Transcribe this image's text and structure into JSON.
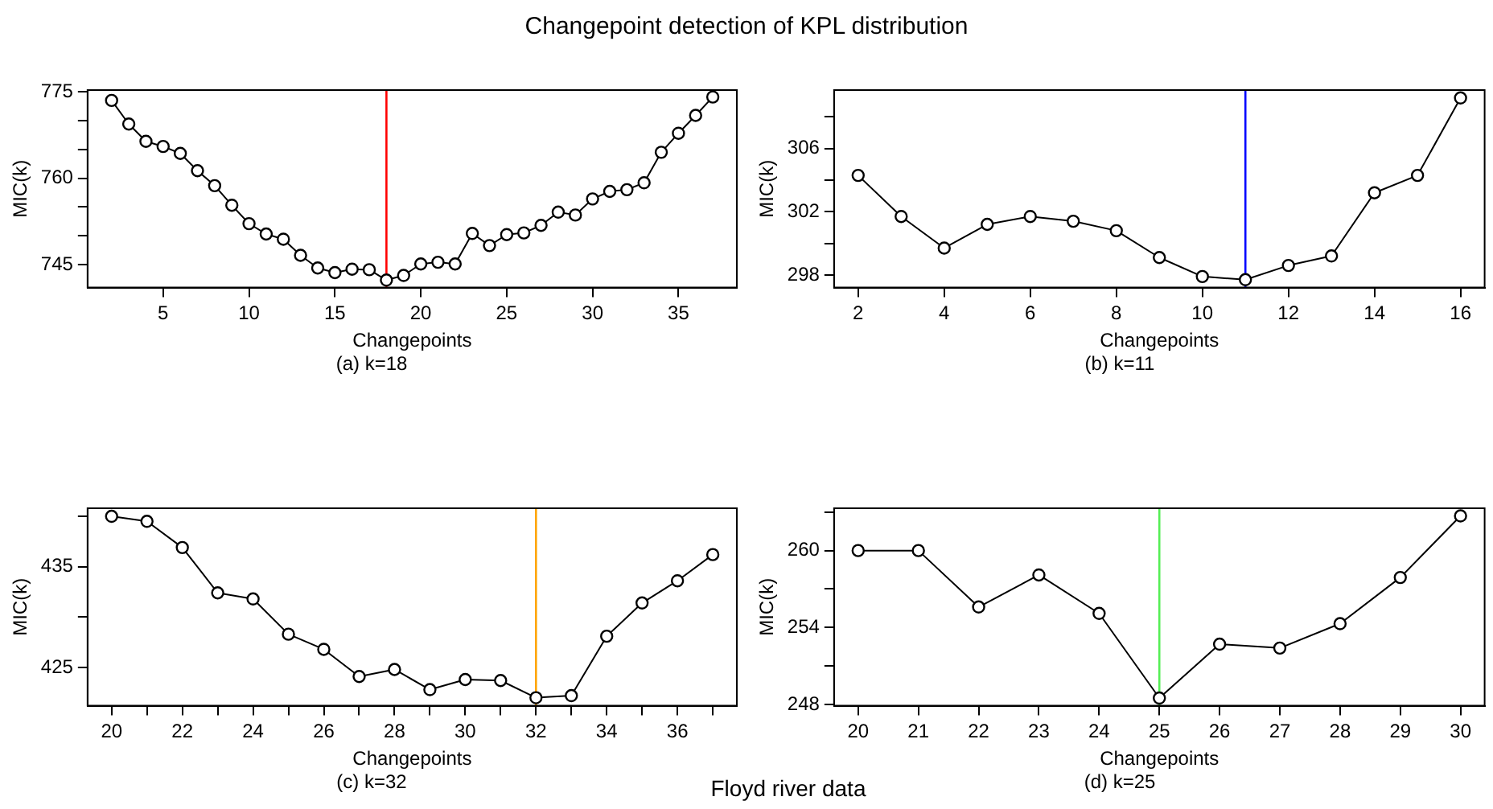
{
  "chart_data": [
    {
      "type": "line",
      "title": "Changepoint detection of KPL distribution",
      "xlabel": "Changepoints",
      "ylabel": "MIC(k)",
      "annotations": [
        "(a) k=18"
      ],
      "grid": false,
      "legend": false,
      "marker": "circle",
      "line_style": "solid",
      "x": [
        2,
        3,
        4,
        5,
        6,
        7,
        8,
        9,
        10,
        11,
        12,
        13,
        14,
        15,
        16,
        17,
        18,
        19,
        20,
        21,
        22,
        23,
        24,
        25,
        26,
        27,
        28,
        29,
        30,
        31,
        32,
        33,
        34,
        35,
        36,
        37
      ],
      "series": [
        {
          "color": "#000000",
          "values": [
            773.5,
            769.4,
            766.4,
            765.5,
            764.3,
            761.3,
            758.7,
            755.3,
            752.1,
            750.3,
            749.4,
            746.6,
            744.4,
            743.6,
            744.2,
            744.1,
            742.3,
            743.1,
            745.1,
            745.4,
            745.1,
            750.4,
            748.3,
            750.2,
            750.5,
            751.8,
            754.1,
            753.6,
            756.4,
            757.7,
            758,
            759.2,
            764.5,
            767.8,
            770.9,
            774.1
          ]
        }
      ],
      "xlim": [
        0.6,
        38.4
      ],
      "xticks": [
        5,
        10,
        15,
        20,
        25,
        30,
        35
      ],
      "ylim": [
        741,
        775.3
      ],
      "yticks": [
        745,
        {
          "value": 750,
          "label": null
        },
        {
          "value": 755,
          "label": null
        },
        760,
        {
          "value": 765,
          "label": null
        },
        {
          "value": 770,
          "label": null
        },
        775
      ],
      "ref_lines": [
        {
          "axis": "x",
          "value": 18,
          "color": "#ff0000"
        }
      ]
    },
    {
      "type": "line",
      "xlabel": "Changepoints",
      "ylabel": "MIC(k)",
      "annotations": [
        "(b) k=11"
      ],
      "grid": false,
      "legend": false,
      "marker": "circle",
      "line_style": "solid",
      "x": [
        2,
        3,
        4,
        5,
        6,
        7,
        8,
        9,
        10,
        11,
        12,
        13,
        14,
        15,
        16
      ],
      "series": [
        {
          "color": "#000000",
          "values": [
            304.3,
            301.7,
            299.7,
            301.2,
            301.7,
            301.4,
            300.8,
            299.1,
            297.9,
            297.7,
            298.6,
            299.2,
            303.2,
            304.3,
            309.2
          ]
        }
      ],
      "xlim": [
        1.44,
        16.56
      ],
      "xticks": [
        2,
        4,
        6,
        8,
        10,
        12,
        14,
        16
      ],
      "ylim": [
        297.2,
        309.7
      ],
      "yticks": [
        298,
        {
          "value": 300,
          "label": null
        },
        302,
        {
          "value": 304,
          "label": null
        },
        306,
        {
          "value": 308,
          "label": null
        }
      ],
      "ref_lines": [
        {
          "axis": "x",
          "value": 11,
          "color": "#0000ff"
        }
      ]
    },
    {
      "type": "line",
      "xlabel": "Changepoints",
      "ylabel": "MIC(k)",
      "annotations": [
        "(c) k=32",
        "Floyd river data"
      ],
      "grid": false,
      "legend": false,
      "marker": "circle",
      "line_style": "solid",
      "x": [
        20,
        21,
        22,
        23,
        24,
        25,
        26,
        27,
        28,
        29,
        30,
        31,
        32,
        33,
        34,
        35,
        36,
        37
      ],
      "series": [
        {
          "color": "#000000",
          "values": [
            440,
            439.5,
            436.9,
            432.4,
            431.8,
            428.3,
            426.8,
            424.1,
            424.8,
            422.8,
            423.8,
            423.7,
            422,
            422.2,
            428.1,
            431.4,
            433.6,
            436.2
          ]
        }
      ],
      "xlim": [
        19.32,
        37.68
      ],
      "xticks": [
        20,
        {
          "value": 21,
          "label": null
        },
        22,
        {
          "value": 23,
          "label": null
        },
        24,
        {
          "value": 25,
          "label": null
        },
        26,
        {
          "value": 27,
          "label": null
        },
        28,
        {
          "value": 29,
          "label": null
        },
        30,
        {
          "value": 31,
          "label": null
        },
        32,
        {
          "value": 33,
          "label": null
        },
        34,
        {
          "value": 35,
          "label": null
        },
        36,
        {
          "value": 37,
          "label": null
        }
      ],
      "ylim": [
        421.2,
        440.8
      ],
      "yticks": [
        425,
        {
          "value": 430,
          "label": null
        },
        435,
        {
          "value": 440,
          "label": null
        }
      ],
      "ref_lines": [
        {
          "axis": "x",
          "value": 32,
          "color": "#ffa500"
        }
      ]
    },
    {
      "type": "line",
      "xlabel": "Changepoints",
      "ylabel": "MIC(k)",
      "annotations": [
        "(d) k=25"
      ],
      "grid": false,
      "legend": false,
      "marker": "circle",
      "line_style": "solid",
      "x": [
        20,
        21,
        22,
        23,
        24,
        25,
        26,
        27,
        28,
        29,
        30
      ],
      "series": [
        {
          "color": "#000000",
          "values": [
            260,
            260,
            255.6,
            258.1,
            255.1,
            248.5,
            252.7,
            252.4,
            254.3,
            257.9,
            262.7
          ]
        }
      ],
      "xlim": [
        19.6,
        30.4
      ],
      "xticks": [
        20,
        21,
        22,
        23,
        24,
        25,
        26,
        27,
        28,
        29,
        30
      ],
      "ylim": [
        247.9,
        263.3
      ],
      "yticks": [
        248,
        {
          "value": 251,
          "label": null
        },
        254,
        {
          "value": 257,
          "label": null
        },
        260,
        {
          "value": 263,
          "label": null
        }
      ],
      "ref_lines": [
        {
          "axis": "x",
          "value": 25,
          "color": "#55ee55"
        }
      ]
    }
  ]
}
